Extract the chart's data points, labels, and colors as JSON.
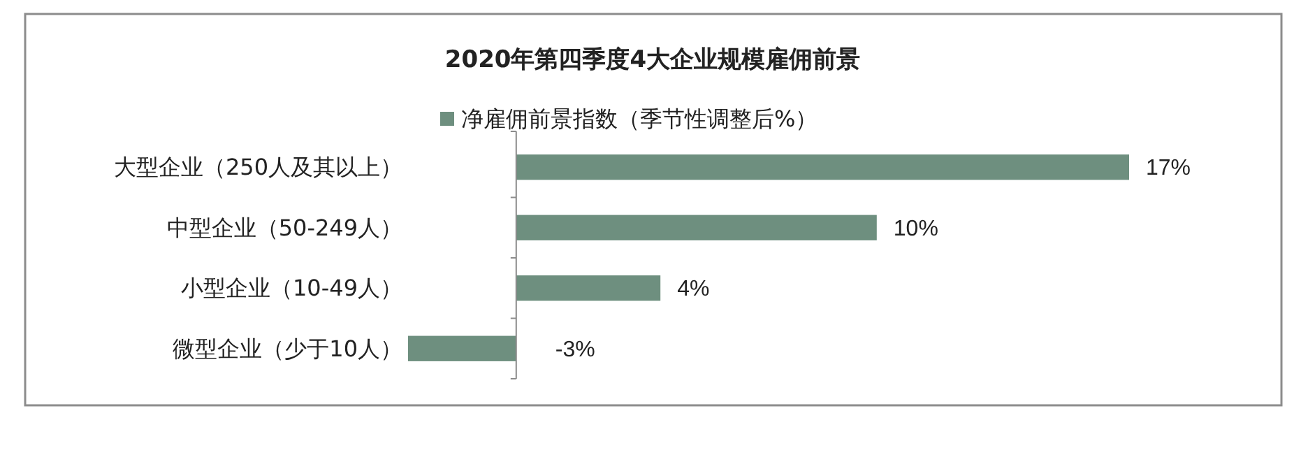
{
  "chart_data": {
    "type": "bar",
    "orientation": "horizontal",
    "title": "2020年第四季度4大企业规模雇佣前景",
    "categories": [
      "大型企业（250人及其以上）",
      "中型企业（50-249人）",
      "小型企业（10-49人）",
      "微型企业（少于10人）"
    ],
    "series": [
      {
        "name": "净雇佣前景指数（季节性调整后%）",
        "color": "#6e8f7f",
        "values": [
          17,
          10,
          4,
          -3
        ],
        "value_labels": [
          "17%",
          "10%",
          "4%",
          "-3%"
        ]
      }
    ],
    "legend": "top"
  }
}
